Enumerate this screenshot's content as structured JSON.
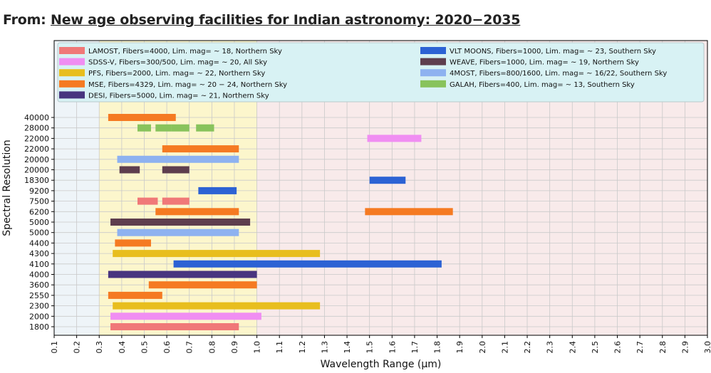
{
  "caption": {
    "label": "From:",
    "title": "New age observing facilities for Indian astronomy: 2020−2035"
  },
  "chart_data": {
    "type": "bar",
    "orientation": "horizontal-ranges",
    "xlabel": "Wavelength Range (μm)",
    "ylabel": "Spectral Resolution",
    "xlim": [
      0.1,
      3.0
    ],
    "xticks": [
      "0.1",
      "0.2",
      "0.3",
      "0.4",
      "0.5",
      "0.6",
      "0.7",
      "0.8",
      "0.9",
      "1.0",
      "1.1",
      "1.2",
      "1.3",
      "1.4",
      "1.5",
      "1.6",
      "1.7",
      "1.8",
      "1.9",
      "2.0",
      "2.1",
      "2.2",
      "2.3",
      "2.4",
      "2.5",
      "2.6",
      "2.7",
      "2.8",
      "2.9",
      "3.0"
    ],
    "categories": [
      "1800",
      "2000",
      "2300",
      "2550",
      "3600",
      "4000",
      "4100",
      "4300",
      "4400",
      "5000",
      "5000",
      "6200",
      "7500",
      "9200",
      "18300",
      "20000",
      "20000",
      "22000",
      "22000",
      "28000",
      "40000"
    ],
    "regions": [
      {
        "from": 0.1,
        "to": 0.3,
        "color": "#eef4f8"
      },
      {
        "from": 0.3,
        "to": 1.0,
        "color": "#fcf6cc"
      },
      {
        "from": 1.0,
        "to": 3.0,
        "color": "#f8eaea"
      }
    ],
    "legend_placement": "top",
    "grid": true,
    "series": [
      {
        "name": "LAMOST, Fibers=4000, Lim. mag= ~ 18, Northern Sky",
        "color": "#f07878",
        "segments": [
          {
            "row": 0,
            "x": [
              0.35,
              0.92
            ]
          },
          {
            "row": 12,
            "x": [
              0.47,
              0.56
            ]
          },
          {
            "row": 12,
            "x": [
              0.58,
              0.7
            ]
          }
        ]
      },
      {
        "name": "SDSS-V, Fibers=300/500, Lim. mag= ~ 20, All Sky",
        "color": "#f08ef2",
        "segments": [
          {
            "row": 1,
            "x": [
              0.35,
              1.02
            ]
          },
          {
            "row": 18,
            "x": [
              1.49,
              1.73
            ]
          }
        ]
      },
      {
        "name": "PFS, Fibers=2000, Lim. mag= ~ 22, Northern Sky",
        "color": "#e8be1e",
        "segments": [
          {
            "row": 2,
            "x": [
              0.36,
              1.28
            ]
          },
          {
            "row": 7,
            "x": [
              0.36,
              1.28
            ]
          }
        ]
      },
      {
        "name": "MSE, Fibers=4329, Lim. mag= ~ 20 − 24, Northern Sky",
        "color": "#f57a22",
        "segments": [
          {
            "row": 3,
            "x": [
              0.34,
              0.58
            ]
          },
          {
            "row": 4,
            "x": [
              0.52,
              1.0
            ]
          },
          {
            "row": 8,
            "x": [
              0.37,
              0.53
            ]
          },
          {
            "row": 11,
            "x": [
              0.55,
              0.92
            ]
          },
          {
            "row": 11,
            "x": [
              1.48,
              1.87
            ]
          },
          {
            "row": 17,
            "x": [
              0.58,
              0.92
            ]
          },
          {
            "row": 20,
            "x": [
              0.34,
              0.64
            ]
          }
        ]
      },
      {
        "name": "DESI, Fibers=5000, Lim. mag= ~ 21, Northern Sky",
        "color": "#48357f",
        "segments": [
          {
            "row": 5,
            "x": [
              0.34,
              1.0
            ]
          }
        ]
      },
      {
        "name": "VLT MOONS, Fibers=1000, Lim. mag= ~ 23, Southern Sky",
        "color": "#2c62d4",
        "segments": [
          {
            "row": 6,
            "x": [
              0.63,
              1.82
            ]
          },
          {
            "row": 13,
            "x": [
              0.74,
              0.91
            ]
          },
          {
            "row": 14,
            "x": [
              1.5,
              1.66
            ]
          }
        ]
      },
      {
        "name": "WEAVE, Fibers=1000, Lim. mag= ~ 19, Northern Sky",
        "color": "#5e3e4e",
        "segments": [
          {
            "row": 10,
            "x": [
              0.35,
              0.97
            ]
          },
          {
            "row": 15,
            "x": [
              0.39,
              0.48
            ]
          },
          {
            "row": 15,
            "x": [
              0.58,
              0.7
            ]
          }
        ]
      },
      {
        "name": "4MOST, Fibers=800/1600, Lim. mag= ~ 16/22, Southern Sky",
        "color": "#8eb2f0",
        "segments": [
          {
            "row": 9,
            "x": [
              0.38,
              0.92
            ]
          },
          {
            "row": 16,
            "x": [
              0.38,
              0.92
            ]
          }
        ]
      },
      {
        "name": "GALAH, Fibers=400, Lim. mag= ~ 13, Southern Sky",
        "color": "#88c35c",
        "segments": [
          {
            "row": 19,
            "x": [
              0.47,
              0.53
            ]
          },
          {
            "row": 19,
            "x": [
              0.55,
              0.62
            ]
          },
          {
            "row": 19,
            "x": [
              0.62,
              0.7
            ]
          },
          {
            "row": 19,
            "x": [
              0.73,
              0.81
            ]
          }
        ]
      }
    ]
  }
}
